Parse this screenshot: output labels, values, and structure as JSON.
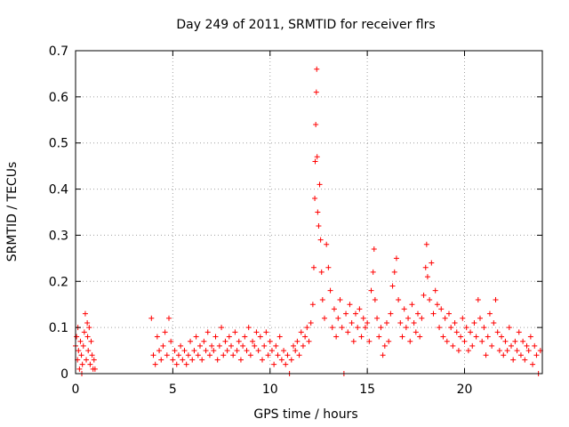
{
  "chart_data": {
    "type": "scatter",
    "title": "Day 249 of 2011, SRMTID for receiver flrs",
    "xlabel": "GPS time / hours",
    "ylabel": "SRMTID / TECUs",
    "xlim": [
      0,
      24
    ],
    "ylim": [
      0,
      0.7
    ],
    "xticks": [
      0,
      5,
      10,
      15,
      20
    ],
    "yticks": [
      0,
      0.1,
      0.2,
      0.3,
      0.4,
      0.5,
      0.6,
      0.7
    ],
    "xtick_labels": [
      "0",
      "5",
      "10",
      "15",
      "20"
    ],
    "ytick_labels": [
      "0",
      "0.1",
      "0.2",
      "0.3",
      "0.4",
      "0.5",
      "0.6",
      "0.7"
    ],
    "grid": true,
    "marker": "+",
    "series": [
      {
        "name": "SRMTID",
        "color": "#ff0000",
        "points": [
          [
            0.0,
            0.06
          ],
          [
            0.05,
            0.08
          ],
          [
            0.1,
            0.03
          ],
          [
            0.15,
            0.05
          ],
          [
            0.2,
            0.01
          ],
          [
            0.25,
            0.07
          ],
          [
            0.3,
            0.04
          ],
          [
            0.35,
            0.02
          ],
          [
            0.4,
            0.06
          ],
          [
            0.45,
            0.09
          ],
          [
            0.5,
            0.13
          ],
          [
            0.55,
            0.03
          ],
          [
            0.6,
            0.11
          ],
          [
            0.65,
            0.05
          ],
          [
            0.7,
            0.1
          ],
          [
            0.75,
            0.02
          ],
          [
            0.8,
            0.07
          ],
          [
            0.85,
            0.04
          ],
          [
            0.9,
            0.01
          ],
          [
            0.95,
            0.03
          ],
          [
            1.0,
            0.01
          ],
          [
            0.12,
            0.1
          ],
          [
            0.32,
            0.0
          ],
          [
            0.62,
            0.08
          ],
          [
            3.9,
            0.12
          ],
          [
            4.0,
            0.04
          ],
          [
            4.1,
            0.02
          ],
          [
            4.2,
            0.08
          ],
          [
            4.3,
            0.05
          ],
          [
            4.4,
            0.03
          ],
          [
            4.5,
            0.06
          ],
          [
            4.6,
            0.09
          ],
          [
            4.7,
            0.04
          ],
          [
            4.8,
            0.12
          ],
          [
            4.9,
            0.07
          ],
          [
            5.0,
            0.03
          ],
          [
            5.1,
            0.05
          ],
          [
            5.2,
            0.02
          ],
          [
            5.3,
            0.04
          ],
          [
            5.4,
            0.06
          ],
          [
            5.5,
            0.03
          ],
          [
            5.6,
            0.05
          ],
          [
            5.7,
            0.02
          ],
          [
            5.8,
            0.04
          ],
          [
            5.9,
            0.07
          ],
          [
            6.0,
            0.03
          ],
          [
            6.1,
            0.05
          ],
          [
            6.2,
            0.08
          ],
          [
            6.3,
            0.04
          ],
          [
            6.4,
            0.06
          ],
          [
            6.5,
            0.03
          ],
          [
            6.6,
            0.07
          ],
          [
            6.7,
            0.05
          ],
          [
            6.8,
            0.09
          ],
          [
            6.9,
            0.04
          ],
          [
            7.0,
            0.06
          ],
          [
            7.1,
            0.05
          ],
          [
            7.2,
            0.08
          ],
          [
            7.3,
            0.03
          ],
          [
            7.4,
            0.06
          ],
          [
            7.5,
            0.1
          ],
          [
            7.6,
            0.04
          ],
          [
            7.7,
            0.07
          ],
          [
            7.8,
            0.05
          ],
          [
            7.9,
            0.08
          ],
          [
            8.0,
            0.06
          ],
          [
            8.1,
            0.04
          ],
          [
            8.2,
            0.09
          ],
          [
            8.3,
            0.05
          ],
          [
            8.4,
            0.07
          ],
          [
            8.5,
            0.03
          ],
          [
            8.6,
            0.06
          ],
          [
            8.7,
            0.08
          ],
          [
            8.8,
            0.05
          ],
          [
            8.9,
            0.1
          ],
          [
            9.0,
            0.04
          ],
          [
            9.1,
            0.07
          ],
          [
            9.2,
            0.06
          ],
          [
            9.3,
            0.09
          ],
          [
            9.4,
            0.05
          ],
          [
            9.5,
            0.08
          ],
          [
            9.6,
            0.03
          ],
          [
            9.7,
            0.06
          ],
          [
            9.8,
            0.09
          ],
          [
            9.9,
            0.04
          ],
          [
            10.0,
            0.07
          ],
          [
            10.1,
            0.05
          ],
          [
            10.2,
            0.02
          ],
          [
            10.3,
            0.06
          ],
          [
            10.4,
            0.04
          ],
          [
            10.5,
            0.08
          ],
          [
            10.6,
            0.03
          ],
          [
            10.7,
            0.05
          ],
          [
            10.8,
            0.02
          ],
          [
            10.9,
            0.04
          ],
          [
            11.0,
            0.0
          ],
          [
            11.1,
            0.03
          ],
          [
            11.2,
            0.06
          ],
          [
            11.3,
            0.05
          ],
          [
            11.4,
            0.07
          ],
          [
            11.5,
            0.04
          ],
          [
            11.6,
            0.09
          ],
          [
            11.7,
            0.06
          ],
          [
            11.8,
            0.08
          ],
          [
            11.9,
            0.1
          ],
          [
            12.0,
            0.07
          ],
          [
            12.1,
            0.11
          ],
          [
            12.2,
            0.15
          ],
          [
            12.25,
            0.23
          ],
          [
            12.3,
            0.38
          ],
          [
            12.32,
            0.46
          ],
          [
            12.35,
            0.54
          ],
          [
            12.38,
            0.61
          ],
          [
            12.4,
            0.66
          ],
          [
            12.42,
            0.47
          ],
          [
            12.45,
            0.35
          ],
          [
            12.5,
            0.32
          ],
          [
            12.55,
            0.41
          ],
          [
            12.6,
            0.29
          ],
          [
            12.65,
            0.22
          ],
          [
            12.7,
            0.16
          ],
          [
            12.8,
            0.12
          ],
          [
            12.9,
            0.28
          ],
          [
            13.0,
            0.23
          ],
          [
            13.1,
            0.18
          ],
          [
            13.2,
            0.1
          ],
          [
            13.3,
            0.14
          ],
          [
            13.4,
            0.08
          ],
          [
            13.5,
            0.12
          ],
          [
            13.6,
            0.16
          ],
          [
            13.7,
            0.1
          ],
          [
            13.8,
            0.0
          ],
          [
            13.9,
            0.13
          ],
          [
            14.0,
            0.09
          ],
          [
            14.1,
            0.15
          ],
          [
            14.2,
            0.11
          ],
          [
            14.3,
            0.07
          ],
          [
            14.4,
            0.13
          ],
          [
            14.5,
            0.1
          ],
          [
            14.6,
            0.14
          ],
          [
            14.7,
            0.08
          ],
          [
            14.8,
            0.12
          ],
          [
            14.9,
            0.1
          ],
          [
            15.0,
            0.11
          ],
          [
            15.1,
            0.07
          ],
          [
            15.2,
            0.18
          ],
          [
            15.3,
            0.22
          ],
          [
            15.35,
            0.27
          ],
          [
            15.4,
            0.16
          ],
          [
            15.5,
            0.12
          ],
          [
            15.6,
            0.08
          ],
          [
            15.7,
            0.1
          ],
          [
            15.8,
            0.04
          ],
          [
            15.9,
            0.06
          ],
          [
            16.0,
            0.11
          ],
          [
            16.1,
            0.07
          ],
          [
            16.2,
            0.13
          ],
          [
            16.3,
            0.19
          ],
          [
            16.4,
            0.22
          ],
          [
            16.5,
            0.25
          ],
          [
            16.6,
            0.16
          ],
          [
            16.7,
            0.11
          ],
          [
            16.8,
            0.08
          ],
          [
            16.9,
            0.14
          ],
          [
            17.0,
            0.1
          ],
          [
            17.1,
            0.12
          ],
          [
            17.2,
            0.07
          ],
          [
            17.3,
            0.15
          ],
          [
            17.4,
            0.11
          ],
          [
            17.5,
            0.09
          ],
          [
            17.6,
            0.13
          ],
          [
            17.7,
            0.08
          ],
          [
            17.8,
            0.12
          ],
          [
            17.9,
            0.17
          ],
          [
            18.0,
            0.23
          ],
          [
            18.05,
            0.28
          ],
          [
            18.1,
            0.21
          ],
          [
            18.2,
            0.16
          ],
          [
            18.3,
            0.24
          ],
          [
            18.4,
            0.13
          ],
          [
            18.5,
            0.18
          ],
          [
            18.6,
            0.15
          ],
          [
            18.7,
            0.1
          ],
          [
            18.8,
            0.14
          ],
          [
            18.9,
            0.08
          ],
          [
            19.0,
            0.12
          ],
          [
            19.1,
            0.07
          ],
          [
            19.2,
            0.13
          ],
          [
            19.3,
            0.1
          ],
          [
            19.4,
            0.06
          ],
          [
            19.5,
            0.11
          ],
          [
            19.6,
            0.09
          ],
          [
            19.7,
            0.05
          ],
          [
            19.8,
            0.08
          ],
          [
            19.9,
            0.12
          ],
          [
            20.0,
            0.07
          ],
          [
            20.1,
            0.1
          ],
          [
            20.2,
            0.05
          ],
          [
            20.3,
            0.09
          ],
          [
            20.4,
            0.06
          ],
          [
            20.5,
            0.11
          ],
          [
            20.6,
            0.08
          ],
          [
            20.7,
            0.16
          ],
          [
            20.8,
            0.12
          ],
          [
            20.9,
            0.07
          ],
          [
            21.0,
            0.1
          ],
          [
            21.1,
            0.04
          ],
          [
            21.2,
            0.08
          ],
          [
            21.3,
            0.13
          ],
          [
            21.4,
            0.06
          ],
          [
            21.5,
            0.11
          ],
          [
            21.6,
            0.16
          ],
          [
            21.7,
            0.09
          ],
          [
            21.8,
            0.05
          ],
          [
            21.9,
            0.08
          ],
          [
            22.0,
            0.04
          ],
          [
            22.1,
            0.07
          ],
          [
            22.2,
            0.05
          ],
          [
            22.3,
            0.1
          ],
          [
            22.4,
            0.06
          ],
          [
            22.5,
            0.03
          ],
          [
            22.6,
            0.07
          ],
          [
            22.7,
            0.05
          ],
          [
            22.8,
            0.09
          ],
          [
            22.9,
            0.04
          ],
          [
            23.0,
            0.07
          ],
          [
            23.1,
            0.03
          ],
          [
            23.2,
            0.06
          ],
          [
            23.3,
            0.05
          ],
          [
            23.4,
            0.08
          ],
          [
            23.5,
            0.02
          ],
          [
            23.6,
            0.06
          ],
          [
            23.7,
            0.04
          ],
          [
            23.8,
            0.0
          ],
          [
            23.9,
            0.05
          ]
        ]
      }
    ]
  }
}
